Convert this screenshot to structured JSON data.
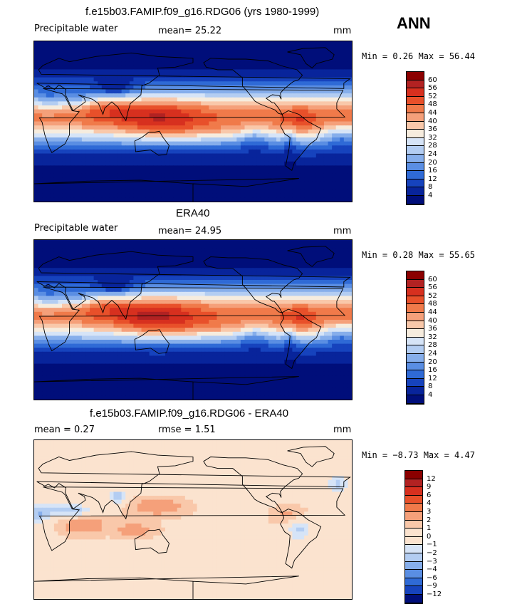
{
  "season": "ANN",
  "panels": [
    {
      "title": "f.e15b03.FAMIP.f09_g16.RDG06 (yrs 1980-1999)",
      "left_label": "Precipitable water",
      "stat_text": "mean=  25.22",
      "stat2_text": "",
      "units": "mm",
      "minmax_text": "Min =   0.26 Max =  56.44",
      "levels": [
        "60",
        "56",
        "52",
        "48",
        "44",
        "40",
        "36",
        "32",
        "28",
        "24",
        "20",
        "16",
        "12",
        "8",
        "4"
      ],
      "field": "pw_model"
    },
    {
      "title": "ERA40",
      "left_label": "Precipitable water",
      "stat_text": "mean=  24.95",
      "stat2_text": "",
      "units": "mm",
      "minmax_text": "Min =   0.28 Max =  55.65",
      "levels": [
        "60",
        "56",
        "52",
        "48",
        "44",
        "40",
        "36",
        "32",
        "28",
        "24",
        "20",
        "16",
        "12",
        "8",
        "4"
      ],
      "field": "pw_obs"
    },
    {
      "title": "f.e15b03.FAMIP.f09_g16.RDG06 - ERA40",
      "left_label": "mean =   0.27",
      "stat_text": "rmse =   1.51",
      "stat2_text": "",
      "units": "mm",
      "minmax_text": "Min = −8.73 Max =   4.47",
      "levels": [
        "12",
        "9",
        "6",
        "4",
        "3",
        "2",
        "1",
        "0",
        "−1",
        "−2",
        "−3",
        "−4",
        "−6",
        "−9",
        "−12"
      ],
      "field": "diff"
    }
  ],
  "colors": {
    "abs_scale": [
      "#8b0000",
      "#b22222",
      "#d7301f",
      "#e8502a",
      "#f07a4a",
      "#f5a07a",
      "#f9c8aa",
      "#f6ecde",
      "#d6e4f7",
      "#b3cdf2",
      "#86aeeb",
      "#5a8ee3",
      "#2f6ad6",
      "#1643bd",
      "#08249b",
      "#000e7a"
    ],
    "diff_scale": [
      "#8b0000",
      "#b22222",
      "#d7301f",
      "#e8502a",
      "#f07a4a",
      "#f5a07a",
      "#f9c8aa",
      "#fbe3cf",
      "#fbe3cf",
      "#d6e4f7",
      "#b3cdf2",
      "#86aeeb",
      "#5a8ee3",
      "#2f6ad6",
      "#1643bd",
      "#000e7a"
    ]
  },
  "chart_data": [
    {
      "type": "heatmap",
      "title": "f.e15b03.FAMIP.f09_g16.RDG06 (yrs 1980-1999)",
      "variable": "Precipitable water",
      "units": "mm",
      "mean": 25.22,
      "min": 0.26,
      "max": 56.44,
      "contour_levels": [
        4,
        8,
        12,
        16,
        20,
        24,
        28,
        32,
        36,
        40,
        44,
        48,
        52,
        56,
        60
      ]
    },
    {
      "type": "heatmap",
      "title": "ERA40",
      "variable": "Precipitable water",
      "units": "mm",
      "mean": 24.95,
      "min": 0.28,
      "max": 55.65,
      "contour_levels": [
        4,
        8,
        12,
        16,
        20,
        24,
        28,
        32,
        36,
        40,
        44,
        48,
        52,
        56,
        60
      ]
    },
    {
      "type": "heatmap",
      "title": "f.e15b03.FAMIP.f09_g16.RDG06 - ERA40",
      "units": "mm",
      "mean": 0.27,
      "rmse": 1.51,
      "min": -8.73,
      "max": 4.47,
      "contour_levels": [
        -12,
        -9,
        -6,
        -4,
        -3,
        -2,
        -1,
        0,
        1,
        2,
        3,
        4,
        6,
        9,
        12
      ]
    }
  ]
}
